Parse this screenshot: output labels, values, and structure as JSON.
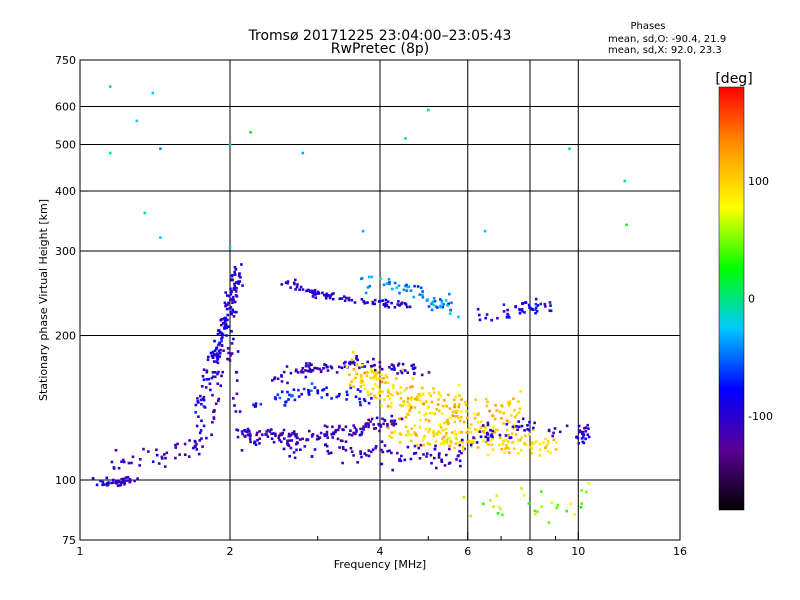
{
  "chart_data": {
    "type": "scatter",
    "title": "Tromsø 20171225 23:04:00–23:05:43",
    "subtitle": "RwPretec (8p)",
    "stats": {
      "heading": "Phases",
      "line1": "mean, sd,O: -90.4, 21.9",
      "line2": "mean, sd,X:  92.0, 23.3"
    },
    "xlabel": "Frequency [MHz]",
    "ylabel": "Stationary phase Virtual Height [km]",
    "x_scale": "log",
    "y_scale": "log",
    "xlim": [
      1,
      16
    ],
    "ylim": [
      75,
      750
    ],
    "x_ticks": [
      1,
      2,
      4,
      6,
      8,
      10,
      16
    ],
    "x_minor_ticks": [
      3,
      5,
      7,
      9
    ],
    "y_ticks": [
      75,
      100,
      200,
      300,
      400,
      500,
      600,
      750
    ],
    "grid": true,
    "colorbar": {
      "label": "[deg]",
      "range": [
        -180,
        180
      ],
      "ticks": [
        100,
        0,
        -100
      ],
      "colors": [
        "#000000",
        "#5a0096",
        "#0000ff",
        "#00c8ff",
        "#00ff00",
        "#ffff00",
        "#ff9600",
        "#ff0000"
      ]
    },
    "series": [
      {
        "x": [
          1.07,
          1.12,
          1.16,
          1.2,
          1.25,
          1.28
        ],
        "y": [
          100,
          99,
          98,
          99,
          100,
          99
        ],
        "phase": -100,
        "spread": 1.5,
        "count": 40
      },
      {
        "x": [
          1.18,
          1.3,
          1.45,
          1.6,
          1.72,
          1.82,
          1.9,
          1.97,
          2.03,
          2.1,
          2.2,
          2.4,
          2.7,
          3.0,
          3.3,
          3.6,
          4.0,
          4.4,
          4.9,
          5.4,
          6.0
        ],
        "y": [
          110,
          113,
          113,
          114,
          118,
          128,
          145,
          175,
          190,
          125,
          122,
          121,
          118,
          117,
          116,
          115,
          114,
          113,
          112,
          112,
          114
        ],
        "phase": -110,
        "spread": 5,
        "count": 220
      },
      {
        "x": [
          1.72,
          1.8,
          1.88,
          1.94,
          1.99,
          2.03,
          2.07
        ],
        "y": [
          140,
          160,
          185,
          205,
          225,
          245,
          270
        ],
        "phase": -95,
        "spread": 10,
        "count": 160
      },
      {
        "x": [
          2.1,
          2.4,
          2.7,
          3.0,
          3.3,
          3.6,
          4.0,
          4.4
        ],
        "y": [
          125,
          124,
          123,
          124,
          126,
          128,
          131,
          133
        ],
        "phase": -110,
        "spread": 3,
        "count": 120
      },
      {
        "x": [
          2.6,
          2.8,
          3.0,
          3.3,
          3.6,
          3.9,
          4.2,
          4.6
        ],
        "y": [
          260,
          250,
          244,
          240,
          237,
          235,
          233,
          232
        ],
        "phase": -100,
        "spread": 3,
        "count": 90
      },
      {
        "x": [
          2.4,
          2.7,
          3.0,
          3.3,
          3.6,
          4.0,
          4.5,
          5.0
        ],
        "y": [
          160,
          168,
          172,
          174,
          175,
          173,
          170,
          166
        ],
        "phase": -105,
        "spread": 4,
        "count": 100
      },
      {
        "x": [
          2.2,
          2.6,
          3.0,
          3.4,
          3.8
        ],
        "y": [
          145,
          148,
          152,
          150,
          147
        ],
        "phase": -80,
        "spread": 5,
        "count": 60
      },
      {
        "x": [
          3.5,
          3.9,
          4.3,
          4.8,
          5.3,
          5.8,
          6.4,
          7.0,
          7.6
        ],
        "y": [
          170,
          160,
          150,
          145,
          140,
          137,
          135,
          134,
          133
        ],
        "phase": 100,
        "spread": 12,
        "count": 260
      },
      {
        "x": [
          4.2,
          4.7,
          5.2,
          5.8,
          6.5,
          7.3,
          8.2,
          9.2
        ],
        "y": [
          125,
          124,
          122,
          121,
          120,
          119,
          118,
          118
        ],
        "phase": 95,
        "spread": 5,
        "count": 140
      },
      {
        "x": [
          6.0,
          6.8,
          7.6,
          8.4,
          9.2,
          10.0,
          10.5
        ],
        "y": [
          122,
          125,
          128,
          129,
          127,
          125,
          124
        ],
        "phase": -100,
        "spread": 4,
        "count": 70
      },
      {
        "x": [
          3.7,
          4.1,
          4.5,
          4.9,
          5.3,
          5.7
        ],
        "y": [
          260,
          255,
          248,
          240,
          232,
          226
        ],
        "phase": -40,
        "spread": 8,
        "count": 60
      },
      {
        "x": [
          6.3,
          6.8,
          7.3,
          7.8,
          8.3,
          8.8
        ],
        "y": [
          220,
          222,
          225,
          228,
          230,
          232
        ],
        "phase": -90,
        "spread": 6,
        "count": 45
      },
      {
        "x": [
          5.3,
          6.0,
          6.8,
          7.6,
          8.5,
          9.5,
          10.5
        ],
        "y": [
          88,
          89,
          88,
          87,
          88,
          90,
          91
        ],
        "phase": 60,
        "spread": 5,
        "count": 30
      },
      {
        "x": [
          1.15,
          1.3,
          1.4,
          1.45,
          2.0,
          2.2,
          2.8,
          3.7,
          4.5,
          5.0,
          6.5,
          9.6,
          12.4,
          12.5,
          1.15,
          1.35,
          1.45,
          2.0
        ],
        "y": [
          660,
          560,
          640,
          490,
          500,
          530,
          480,
          330,
          515,
          590,
          330,
          490,
          420,
          340,
          480,
          360,
          320,
          305
        ],
        "phase": -20,
        "spread": 0,
        "count": 0
      }
    ]
  }
}
